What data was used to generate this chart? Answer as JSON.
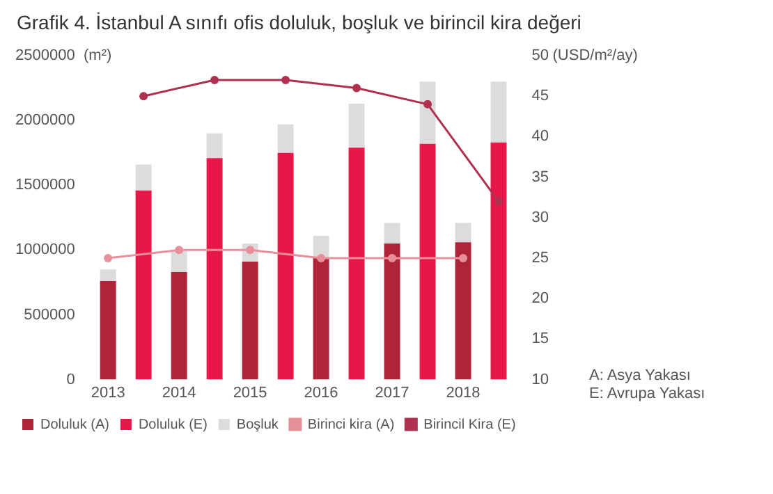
{
  "chart_data": {
    "type": "bar",
    "title": "Grafik 4. İstanbul A sınıfı ofis doluluk, boşluk ve birincil kira değeri",
    "ylabel": "(m²)",
    "y2label": "(USD/m²/ay)",
    "categories": [
      "2013",
      null,
      "2014",
      null,
      "2015",
      null,
      "2016",
      null,
      "2017",
      null,
      "2018",
      null
    ],
    "stacked": true,
    "series": [
      {
        "name": "Doluluk (A)",
        "color": "#b0243a",
        "values": [
          760000,
          null,
          830000,
          null,
          910000,
          null,
          940000,
          null,
          1050000,
          null,
          1060000,
          null
        ]
      },
      {
        "name": "Doluluk (E)",
        "color": "#e8174a",
        "values": [
          null,
          1460000,
          null,
          1710000,
          null,
          1750000,
          null,
          1790000,
          null,
          1820000,
          null,
          1830000
        ]
      },
      {
        "name": "Boşluk",
        "color": "#dcdcdc",
        "values": [
          90000,
          200000,
          170000,
          190000,
          140000,
          220000,
          170000,
          340000,
          160000,
          480000,
          150000,
          470000
        ]
      },
      {
        "name": "Birinci kira (A)",
        "type": "line",
        "axis": "y2",
        "color": "#e8909a",
        "values": [
          25,
          null,
          26,
          null,
          26,
          null,
          25,
          null,
          25,
          null,
          25,
          null
        ]
      },
      {
        "name": "Birincil Kira (E)",
        "type": "line",
        "axis": "y2",
        "color": "#b03050",
        "values": [
          null,
          45,
          null,
          47,
          null,
          47,
          null,
          46,
          null,
          44,
          null,
          32
        ]
      }
    ],
    "ylim": [
      0,
      2500000
    ],
    "yticks": [
      0,
      500000,
      1000000,
      1500000,
      2000000,
      2500000
    ],
    "y2lim": [
      10,
      50
    ],
    "y2ticks": [
      10,
      15,
      20,
      25,
      30,
      35,
      40,
      45,
      50
    ],
    "grid": false,
    "legend": "bottom",
    "marker": "circle",
    "line_style": "solid",
    "annotations": [
      "A: Asya Yakası\nE: Avrupa Yakası"
    ]
  }
}
